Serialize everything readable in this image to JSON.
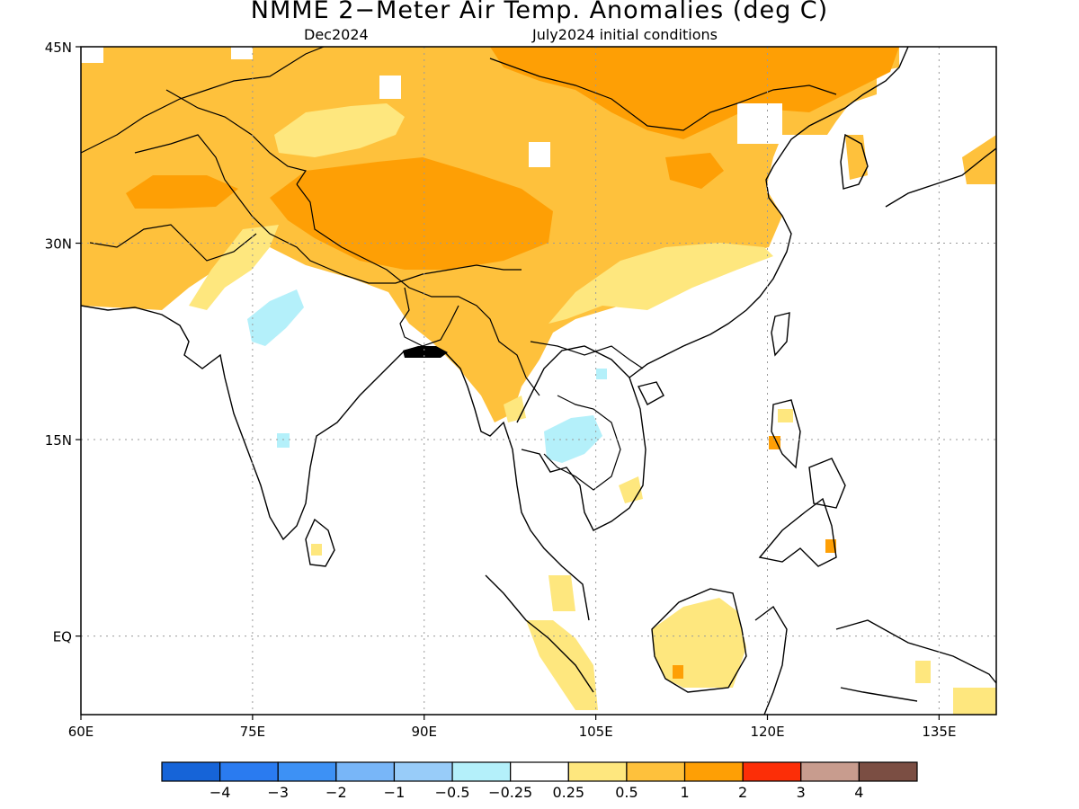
{
  "title": "NMME 2−Meter Air Temp. Anomalies (deg C)",
  "subtitle_left": "Dec2024",
  "subtitle_right": "July2024 initial conditions",
  "map": {
    "lon_range": [
      60,
      140
    ],
    "lat_range": [
      -6,
      45
    ],
    "lon_ticks": [
      {
        "value": 60,
        "label": "60E"
      },
      {
        "value": 75,
        "label": "75E"
      },
      {
        "value": 90,
        "label": "90E"
      },
      {
        "value": 105,
        "label": "105E"
      },
      {
        "value": 120,
        "label": "120E"
      },
      {
        "value": 135,
        "label": "135E"
      }
    ],
    "lat_ticks": [
      {
        "value": 45,
        "label": "45N"
      },
      {
        "value": 30,
        "label": "30N"
      },
      {
        "value": 15,
        "label": "15N"
      },
      {
        "value": 0,
        "label": "EQ"
      }
    ],
    "grid": true
  },
  "colorbar": {
    "colors": [
      "#1664d8",
      "#2a7bf0",
      "#3d91f5",
      "#78b6f8",
      "#98ccf9",
      "#b4f0fa",
      "#ffffff",
      "#fee77e",
      "#fec13c",
      "#fe9f05",
      "#fc2e07",
      "#c89c8e",
      "#7b4e43"
    ],
    "labels": [
      "−4",
      "−3",
      "−2",
      "−1",
      "−0.5",
      "−0.25",
      "0.25",
      "0.5",
      "1",
      "2",
      "3",
      "4"
    ]
  },
  "anomaly_colors": {
    "light_yellow": "#fee77e",
    "light_orange": "#fec13c",
    "orange": "#fe9f05",
    "light_cyan": "#b4f0fa"
  }
}
